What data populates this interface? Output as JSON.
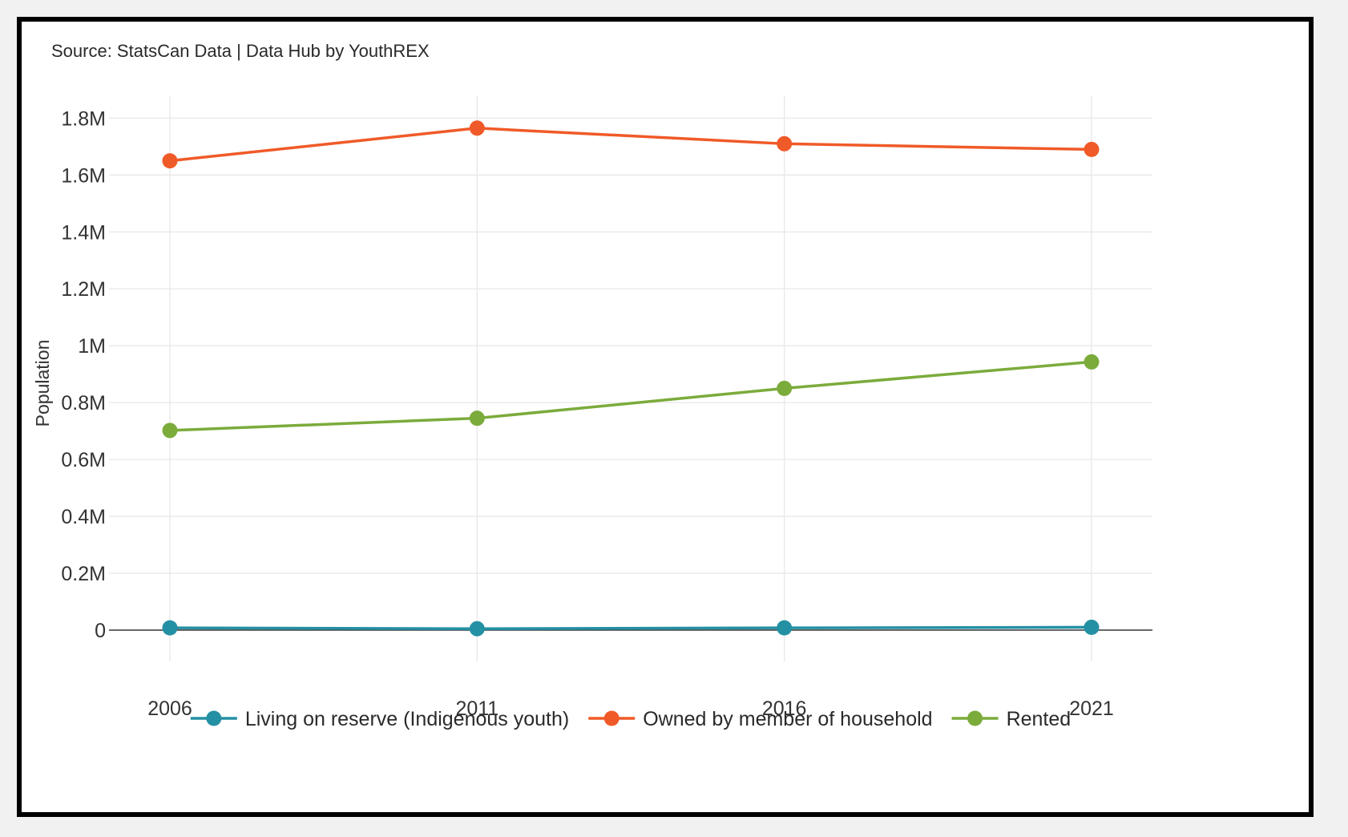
{
  "source_note": "Source: StatsCan Data | Data Hub by YouthREX",
  "chart_data": {
    "type": "line",
    "title": "",
    "xlabel": "",
    "ylabel": "Population",
    "categories": [
      "2006",
      "2011",
      "2016",
      "2021"
    ],
    "ylim": [
      -0.11,
      1.88
    ],
    "yticks": [
      0,
      0.2,
      0.4,
      0.6,
      0.8,
      1,
      1.2,
      1.4,
      1.6,
      1.8
    ],
    "ytick_labels": [
      "0",
      "0.2M",
      "0.4M",
      "0.6M",
      "0.8M",
      "1M",
      "1.2M",
      "1.4M",
      "1.6M",
      "1.8M"
    ],
    "y_unit": "millions",
    "grid": true,
    "legend_position": "bottom",
    "series": [
      {
        "name": "Living on reserve (Indigenous youth)",
        "color": "#2490a4",
        "values": [
          0.008,
          0.005,
          0.008,
          0.01
        ]
      },
      {
        "name": "Owned by member of household",
        "color": "#f05a28",
        "values": [
          1.65,
          1.765,
          1.71,
          1.69
        ]
      },
      {
        "name": "Rented",
        "color": "#7bab3b",
        "values": [
          0.702,
          0.745,
          0.85,
          0.943
        ]
      }
    ]
  }
}
